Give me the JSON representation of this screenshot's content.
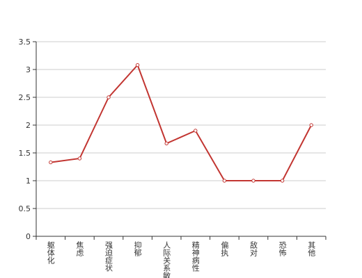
{
  "chart_data": {
    "type": "line",
    "categories": [
      "躯体化",
      "焦虑",
      "强迫症状",
      "抑郁",
      "人际关系敏感",
      "精神病性",
      "偏执",
      "敌对",
      "恐怖",
      "其他"
    ],
    "values": [
      1.33,
      1.4,
      2.5,
      3.08,
      1.67,
      1.9,
      1,
      1,
      1,
      2
    ],
    "color": "#c23531",
    "ylim": [
      0,
      3.5
    ],
    "yticks": [
      0,
      0.5,
      1,
      1.5,
      2,
      2.5,
      3,
      3.5
    ],
    "grid": true
  }
}
